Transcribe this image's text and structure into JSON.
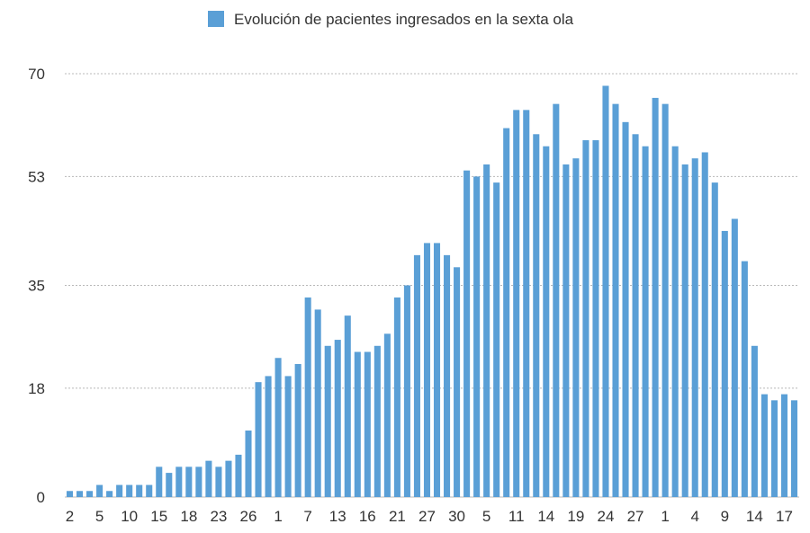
{
  "chart_data": {
    "type": "bar",
    "legend": {
      "label": "Evolución de pacientes ingresados en la sexta ola",
      "color": "#5a9fd6",
      "placement": "top"
    },
    "bar_color": "#5a9fd6",
    "gridline_color": "#b8b8b8",
    "ylim": [
      0,
      70
    ],
    "yticks": [
      0,
      18,
      35,
      53,
      70
    ],
    "grid": true,
    "x_tick_labels": [
      "2",
      "5",
      "10",
      "15",
      "18",
      "23",
      "26",
      "1",
      "7",
      "13",
      "16",
      "21",
      "27",
      "30",
      "5",
      "11",
      "14",
      "19",
      "24",
      "27",
      "1",
      "4",
      "9",
      "14",
      "17"
    ],
    "values": [
      1,
      1,
      1,
      2,
      1,
      2,
      2,
      2,
      2,
      5,
      4,
      5,
      5,
      5,
      6,
      5,
      6,
      7,
      11,
      19,
      20,
      23,
      20,
      22,
      33,
      31,
      25,
      26,
      30,
      24,
      24,
      25,
      27,
      33,
      35,
      40,
      42,
      42,
      40,
      38,
      54,
      53,
      55,
      52,
      61,
      64,
      64,
      60,
      58,
      65,
      55,
      56,
      59,
      59,
      68,
      65,
      62,
      60,
      58,
      66,
      65,
      58,
      55,
      56,
      57,
      52,
      44,
      46,
      39,
      25,
      17,
      16,
      17,
      16
    ]
  }
}
